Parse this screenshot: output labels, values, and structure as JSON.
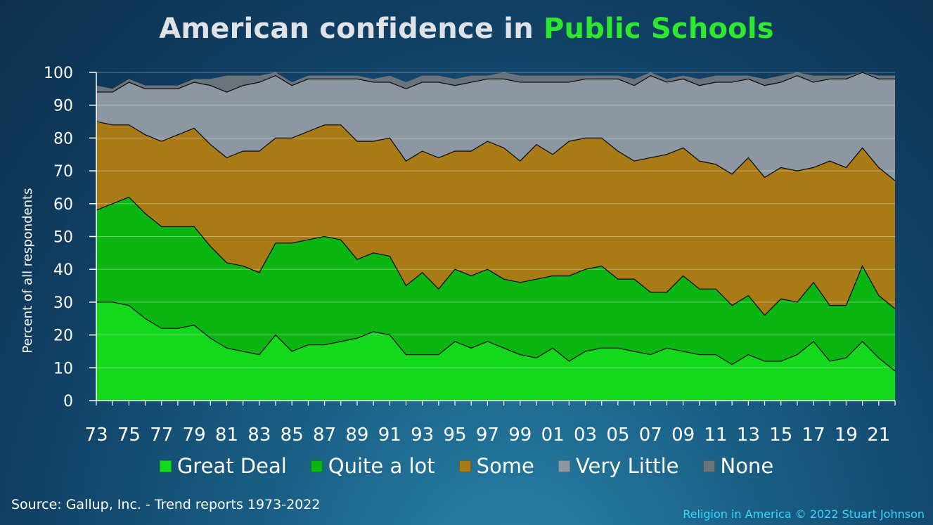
{
  "title": {
    "prefix": "American confidence in ",
    "highlight": "Public Schools"
  },
  "chart_data": {
    "type": "area",
    "stacked": true,
    "title": "American confidence in Public Schools",
    "ylabel": "Percent of all respondents",
    "xlabel": "",
    "ylim": [
      0,
      100
    ],
    "yticks": [
      "0",
      "10",
      "20",
      "30",
      "40",
      "50",
      "60",
      "70",
      "80",
      "90",
      "100"
    ],
    "xtick_labels": [
      "73",
      "75",
      "77",
      "79",
      "81",
      "83",
      "85",
      "87",
      "89",
      "91",
      "93",
      "95",
      "97",
      "99",
      "01",
      "03",
      "05",
      "07",
      "09",
      "11",
      "13",
      "15",
      "17",
      "19",
      "21"
    ],
    "grid": true,
    "legend_position": "bottom",
    "x": [
      1973,
      1974,
      1975,
      1976,
      1977,
      1978,
      1979,
      1980,
      1981,
      1982,
      1983,
      1984,
      1985,
      1986,
      1987,
      1988,
      1989,
      1990,
      1991,
      1992,
      1993,
      1994,
      1995,
      1996,
      1997,
      1998,
      1999,
      2000,
      2001,
      2002,
      2003,
      2004,
      2005,
      2006,
      2007,
      2008,
      2009,
      2010,
      2011,
      2012,
      2013,
      2014,
      2015,
      2016,
      2017,
      2018,
      2019,
      2020,
      2021,
      2022
    ],
    "series": [
      {
        "name": "Great Deal",
        "color": "#14d81c",
        "values": [
          30,
          30,
          29,
          25,
          22,
          22,
          23,
          19,
          16,
          15,
          14,
          20,
          15,
          17,
          17,
          18,
          19,
          21,
          20,
          14,
          14,
          14,
          18,
          16,
          18,
          16,
          14,
          13,
          16,
          12,
          15,
          16,
          16,
          15,
          14,
          16,
          15,
          14,
          14,
          11,
          14,
          12,
          12,
          14,
          18,
          12,
          13,
          18,
          13,
          9
        ]
      },
      {
        "name": "Quite a lot",
        "color": "#0bb512",
        "values": [
          28,
          30,
          33,
          32,
          31,
          31,
          30,
          28,
          26,
          26,
          25,
          28,
          33,
          32,
          33,
          31,
          24,
          24,
          24,
          21,
          25,
          20,
          22,
          22,
          22,
          21,
          22,
          24,
          22,
          26,
          25,
          25,
          21,
          22,
          19,
          17,
          23,
          20,
          20,
          18,
          18,
          14,
          19,
          16,
          18,
          17,
          16,
          23,
          19,
          19
        ]
      },
      {
        "name": "Some",
        "color": "#a97b17",
        "values": [
          27,
          24,
          22,
          24,
          26,
          28,
          30,
          31,
          32,
          35,
          37,
          32,
          32,
          33,
          34,
          35,
          36,
          34,
          36,
          38,
          37,
          40,
          36,
          38,
          39,
          40,
          37,
          41,
          37,
          41,
          40,
          39,
          39,
          36,
          41,
          42,
          39,
          39,
          38,
          40,
          42,
          42,
          40,
          40,
          35,
          44,
          42,
          36,
          39,
          39
        ]
      },
      {
        "name": "Very Little",
        "color": "#8d97a2",
        "values": [
          9,
          10,
          13,
          14,
          16,
          14,
          14,
          18,
          20,
          20,
          21,
          19,
          16,
          16,
          14,
          14,
          19,
          18,
          17,
          22,
          21,
          23,
          20,
          21,
          19,
          21,
          24,
          19,
          22,
          18,
          18,
          18,
          22,
          23,
          25,
          22,
          21,
          23,
          25,
          28,
          24,
          28,
          26,
          29,
          26,
          25,
          27,
          23,
          27,
          31
        ]
      },
      {
        "name": "None",
        "color": "#6b747d",
        "values": [
          2,
          1,
          1,
          1,
          1,
          1,
          1,
          2,
          5,
          3,
          2,
          1,
          1,
          1,
          1,
          1,
          1,
          1,
          2,
          2,
          2,
          2,
          2,
          2,
          1,
          2,
          2,
          2,
          2,
          2,
          1,
          1,
          1,
          2,
          1,
          1,
          1,
          2,
          2,
          2,
          1,
          2,
          2,
          1,
          2,
          1,
          1,
          0,
          1,
          1
        ]
      }
    ]
  },
  "source": "Source: Gallup, Inc. - Trend reports 1973-2022",
  "credit": "Religion in America © 2022 Stuart Johnson"
}
